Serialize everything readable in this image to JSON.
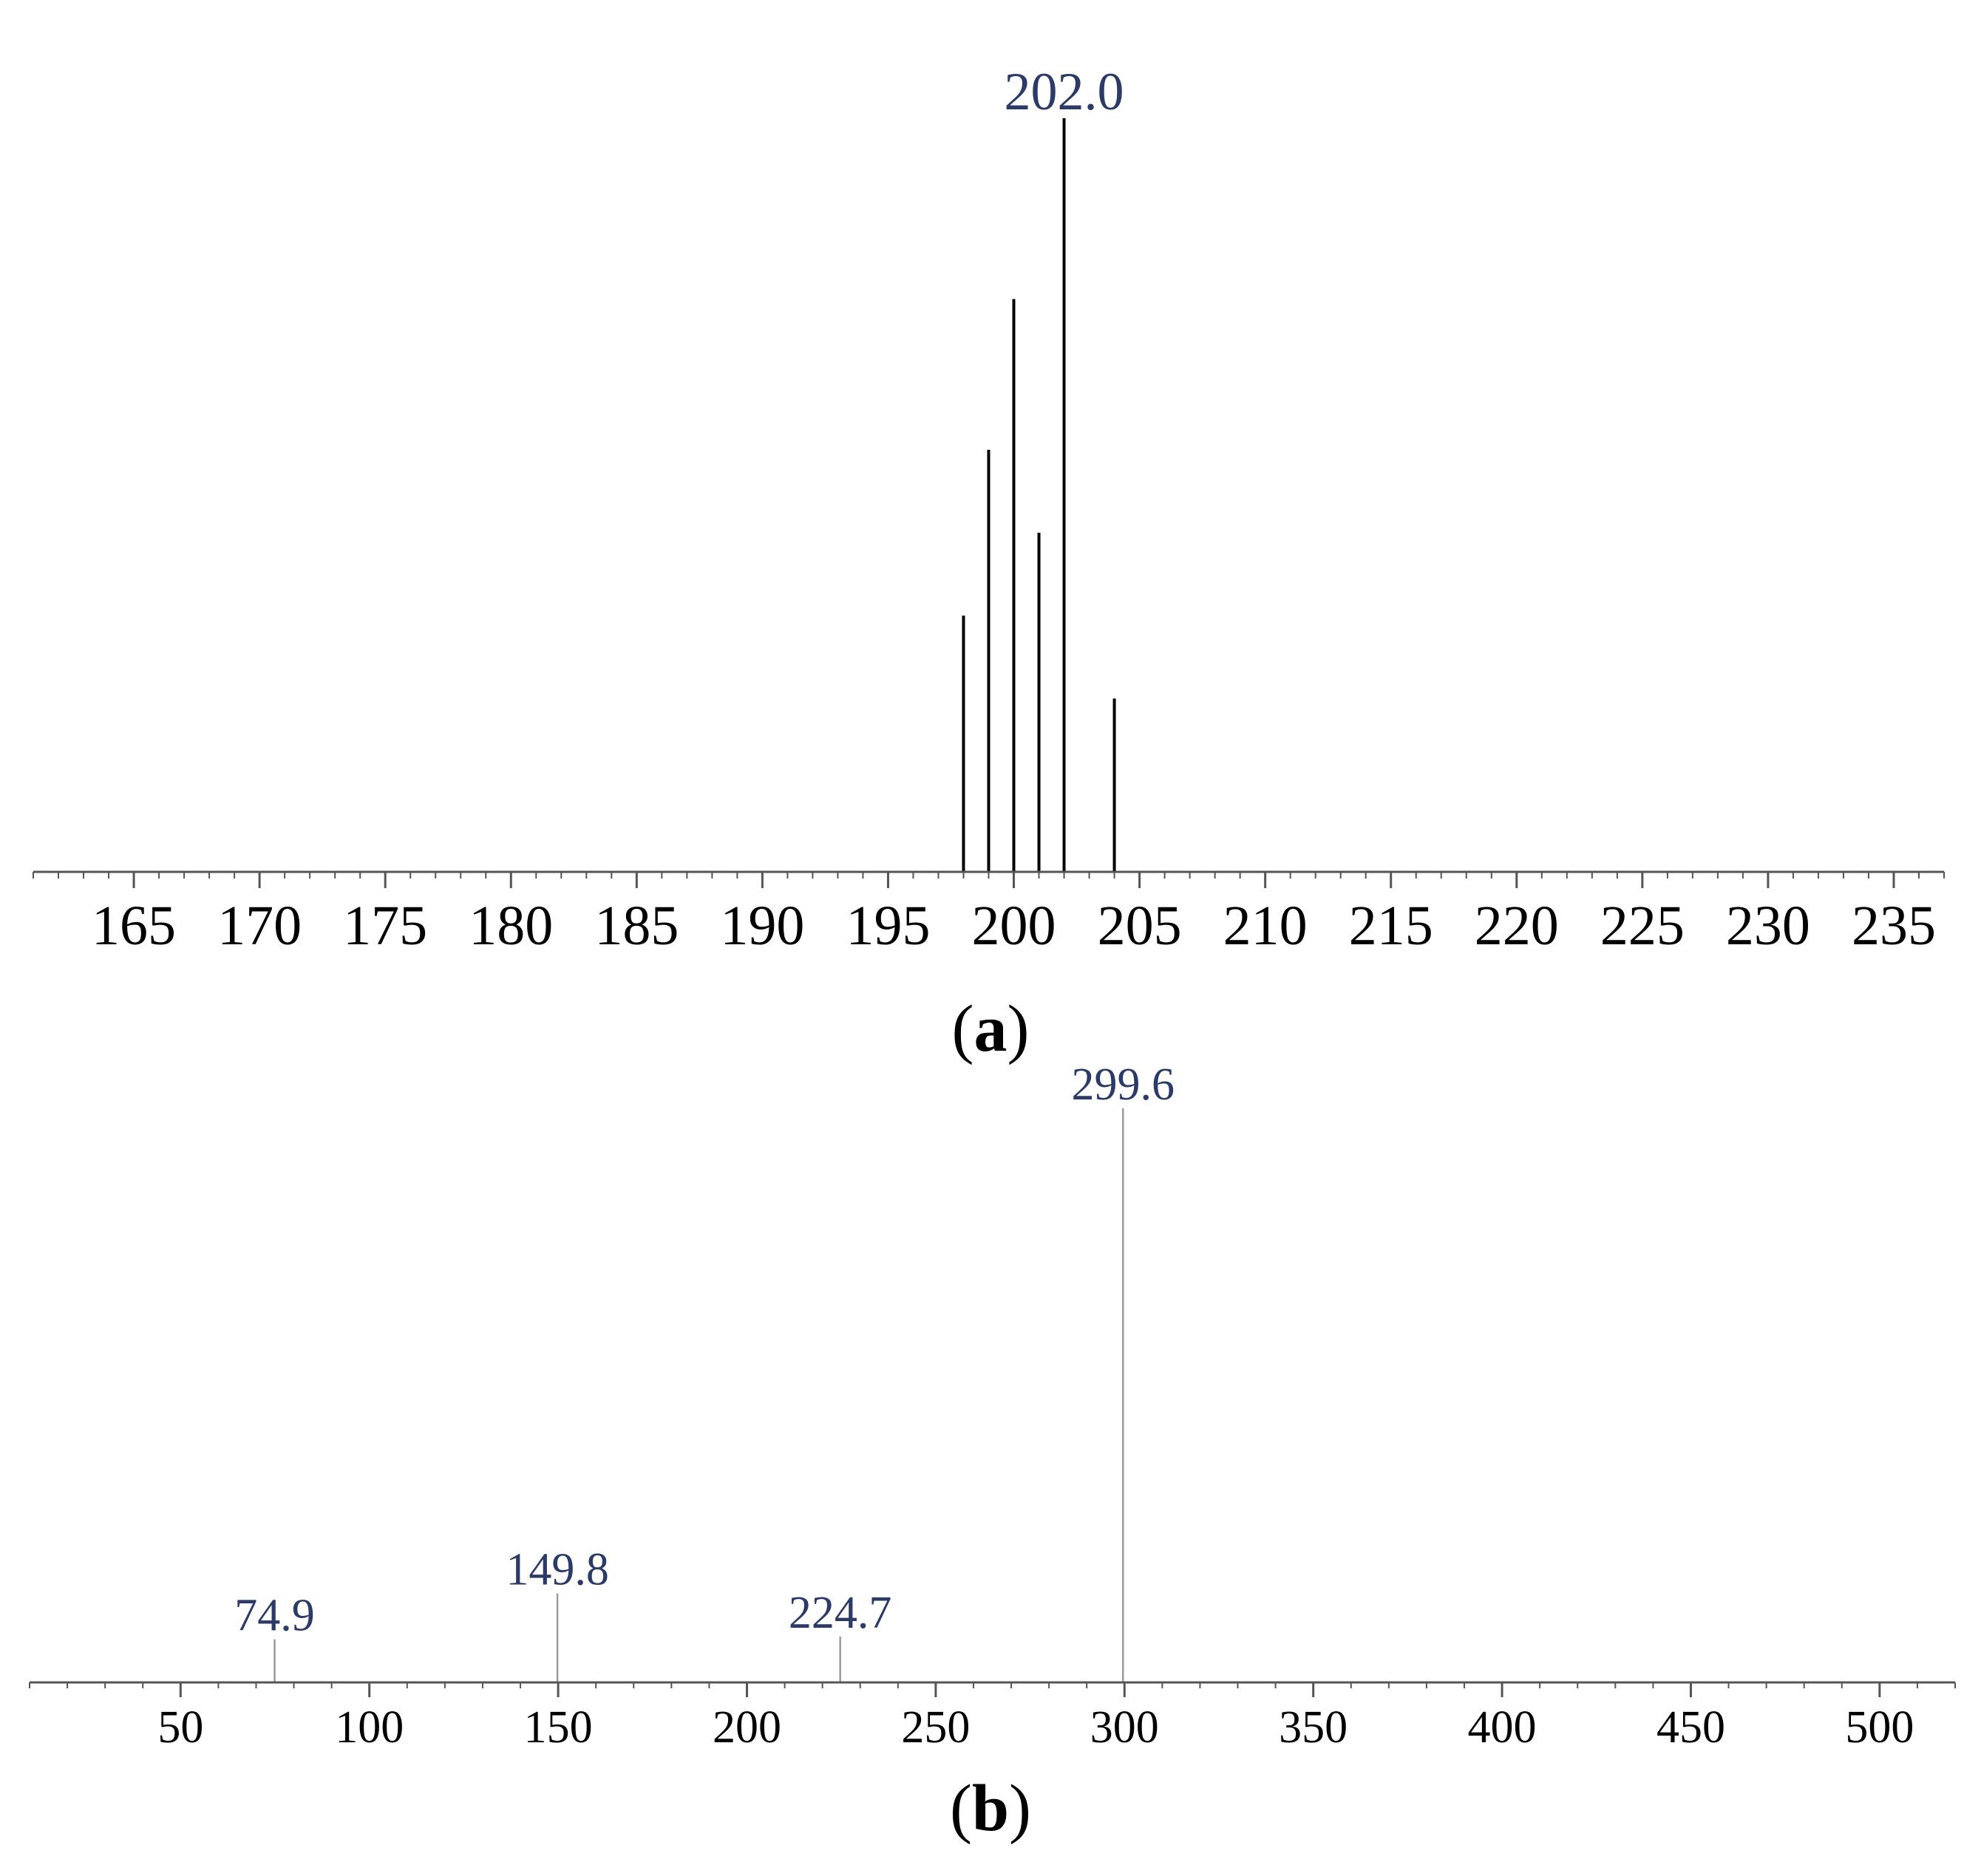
{
  "chart_data": [
    {
      "type": "bar",
      "panel_label": "a",
      "x": [
        198,
        199,
        200,
        201,
        202,
        204
      ],
      "values": [
        34,
        56,
        76,
        45,
        100,
        23
      ],
      "xlim": [
        161,
        237
      ],
      "ylim": [
        0,
        100
      ],
      "major_ticks": [
        165,
        170,
        175,
        180,
        185,
        190,
        195,
        200,
        205,
        210,
        215,
        220,
        225,
        230,
        235
      ],
      "minor_tick_step": 1,
      "peak_labels": [
        {
          "x": 202,
          "text": "202.0"
        }
      ],
      "stem_color": "#000000",
      "label_color": "#2b3a67",
      "grid": false
    },
    {
      "type": "bar",
      "panel_label": "b",
      "x": [
        74.9,
        149.8,
        224.7,
        299.6
      ],
      "values": [
        7.5,
        15.5,
        8,
        100
      ],
      "xlim": [
        10,
        520
      ],
      "ylim": [
        0,
        100
      ],
      "major_ticks": [
        50,
        100,
        150,
        200,
        250,
        300,
        350,
        400,
        450,
        500
      ],
      "minor_tick_step": 10,
      "peak_labels": [
        {
          "x": 74.9,
          "text": "74.9"
        },
        {
          "x": 149.8,
          "text": "149.8"
        },
        {
          "x": 224.7,
          "text": "224.7"
        },
        {
          "x": 299.6,
          "text": "299.6"
        }
      ],
      "stem_color": "#9a9a9a",
      "label_color": "#2b3a67",
      "grid": false
    }
  ]
}
